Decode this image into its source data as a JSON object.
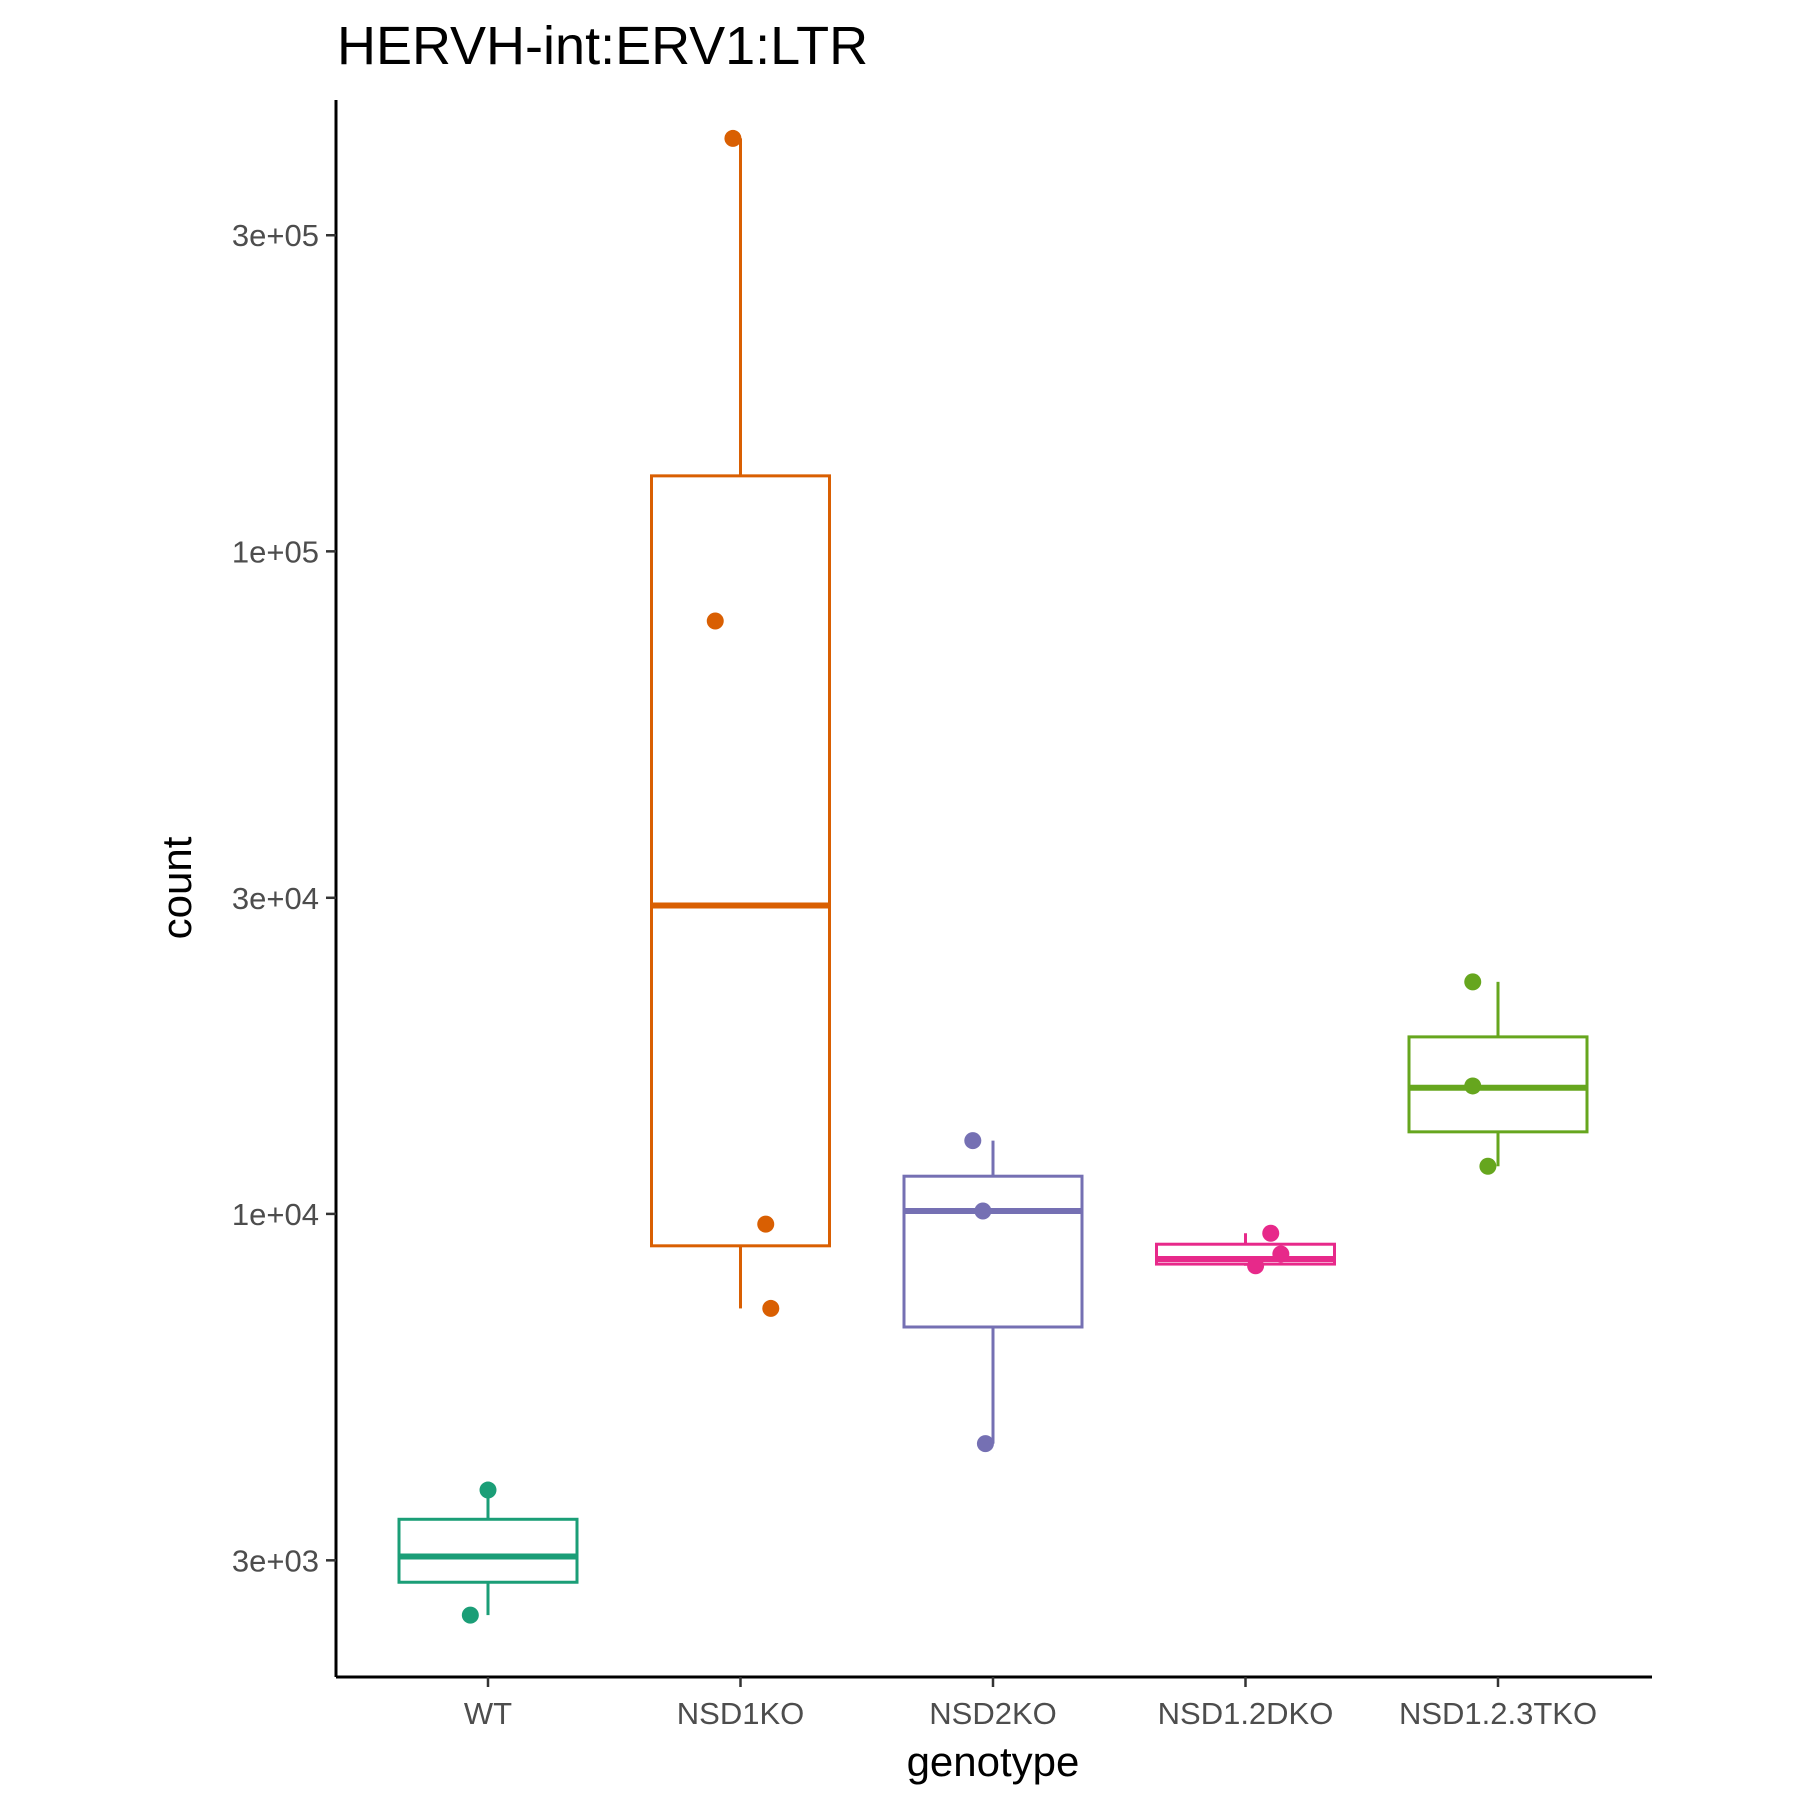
{
  "chart_data": {
    "type": "boxplot",
    "title": "HERVH-int:ERV1:LTR",
    "xlabel": "genotype",
    "ylabel": "count",
    "y_scale": "log10",
    "ylim": [
      2000,
      480000
    ],
    "y_ticks": [
      {
        "value": 3000,
        "label": "3e+03"
      },
      {
        "value": 10000,
        "label": "1e+04"
      },
      {
        "value": 30000,
        "label": "3e+04"
      },
      {
        "value": 100000,
        "label": "1e+05"
      },
      {
        "value": 300000,
        "label": "3e+05"
      }
    ],
    "categories": [
      "WT",
      "NSD1KO",
      "NSD2KO",
      "NSD1.2DKO",
      "NSD1.2.3TKO"
    ],
    "groups": [
      {
        "name": "WT",
        "color": "#1b9e77",
        "box": {
          "lower_whisker": 2480,
          "q1": 2780,
          "median": 3040,
          "q3": 3460,
          "upper_whisker": 3830
        },
        "points": [
          {
            "y": 3830,
            "jitter": 0
          },
          {
            "y": 2480,
            "jitter": -0.07
          }
        ]
      },
      {
        "name": "NSD1KO",
        "color": "#d95f02",
        "box": {
          "lower_whisker": 7200,
          "q1": 8950,
          "median": 29200,
          "q3": 130000,
          "upper_whisker": 420000
        },
        "points": [
          {
            "y": 420000,
            "jitter": -0.03
          },
          {
            "y": 78500,
            "jitter": -0.1
          },
          {
            "y": 9650,
            "jitter": 0.1
          },
          {
            "y": 7200,
            "jitter": 0.12
          }
        ]
      },
      {
        "name": "NSD2KO",
        "color": "#7570b3",
        "box": {
          "lower_whisker": 4500,
          "q1": 6750,
          "median": 10100,
          "q3": 11400,
          "upper_whisker": 12900
        },
        "points": [
          {
            "y": 12900,
            "jitter": -0.08
          },
          {
            "y": 10100,
            "jitter": -0.04
          },
          {
            "y": 4500,
            "jitter": -0.03
          }
        ]
      },
      {
        "name": "NSD1.2DKO",
        "color": "#e7298a",
        "box": {
          "lower_whisker": 8350,
          "q1": 8400,
          "median": 8550,
          "q3": 9000,
          "upper_whisker": 9350
        },
        "points": [
          {
            "y": 9350,
            "jitter": 0.1
          },
          {
            "y": 8700,
            "jitter": 0.14
          },
          {
            "y": 8350,
            "jitter": 0.04
          }
        ]
      },
      {
        "name": "NSD1.2.3TKO",
        "color": "#66a61e",
        "box": {
          "lower_whisker": 11800,
          "q1": 13300,
          "median": 15500,
          "q3": 18500,
          "upper_whisker": 22400
        },
        "points": [
          {
            "y": 22400,
            "jitter": -0.1
          },
          {
            "y": 15600,
            "jitter": -0.1
          },
          {
            "y": 11800,
            "jitter": -0.04
          }
        ]
      }
    ]
  }
}
